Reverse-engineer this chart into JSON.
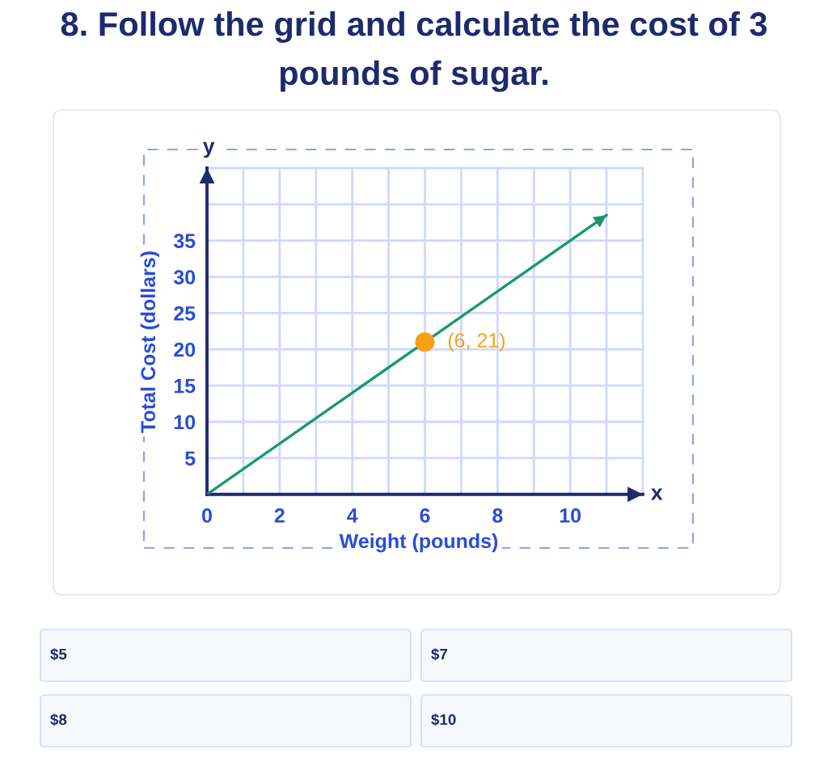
{
  "chart_data": {
    "type": "line",
    "title": "8. Follow the grid and calculate the cost of 3 pounds of sugar.",
    "xlabel": "Weight (pounds)",
    "ylabel": "Total Cost (dollars)",
    "series": [
      {
        "x": [
          0,
          11
        ],
        "values": [
          0,
          38.5
        ],
        "color": "#17996b"
      },
      {
        "type": "scatter",
        "x": [
          6
        ],
        "values": [
          21
        ],
        "color": "#f6a01a"
      }
    ],
    "xlim": [
      0,
      12
    ],
    "ylim": [
      0,
      45
    ],
    "xticks": [
      0,
      {
        "value": 1,
        "label": null
      },
      2,
      {
        "value": 3,
        "label": null
      },
      4,
      {
        "value": 5,
        "label": null
      },
      6,
      {
        "value": 7,
        "label": null
      },
      8,
      {
        "value": 9,
        "label": null
      },
      10,
      {
        "value": 11,
        "label": null
      },
      {
        "value": 12,
        "label": null
      }
    ],
    "yticks": [
      5,
      10,
      15,
      20,
      25,
      30,
      35,
      {
        "value": 40,
        "label": null
      },
      {
        "value": 45,
        "label": null
      }
    ],
    "grid": true,
    "annotations": [
      {
        "text": "(6, 21)",
        "x": 6,
        "y": 21
      },
      "x",
      "y",
      "$5",
      "$7",
      "$8",
      "$10"
    ]
  }
}
